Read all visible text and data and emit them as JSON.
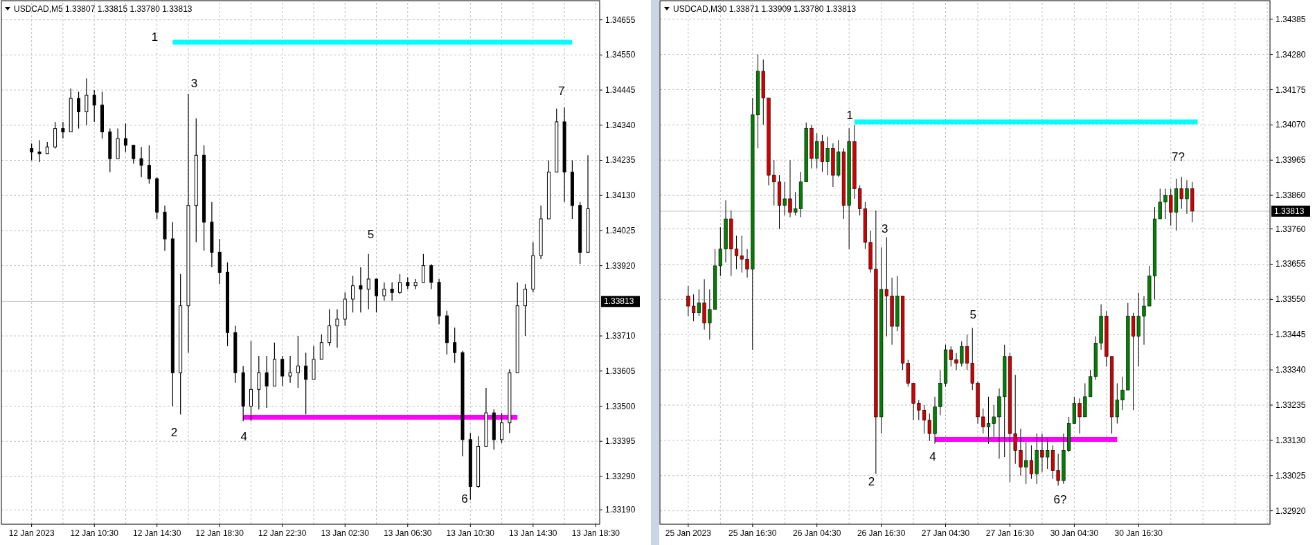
{
  "chart_data": [
    {
      "type": "candlestick",
      "title": "USDCAD,M5  1.33807 1.33815 1.33780 1.33813",
      "color": "#000000",
      "grid": true,
      "categories": [
        "12 Jan 2023",
        null,
        null,
        null,
        null,
        null,
        null,
        null,
        "12 Jan 10:30",
        null,
        null,
        null,
        null,
        null,
        null,
        null,
        "12 Jan 14:30",
        null,
        null,
        null,
        null,
        null,
        null,
        null,
        "12 Jan 18:30",
        null,
        null,
        null,
        null,
        null,
        null,
        null,
        "12 Jan 22:30",
        null,
        null,
        null,
        null,
        null,
        null,
        null,
        "13 Jan 02:30",
        null,
        null,
        null,
        null,
        null,
        null,
        null,
        "13 Jan 06:30",
        null,
        null,
        null,
        null,
        null,
        null,
        null,
        "13 Jan 10:30",
        null,
        null,
        null,
        null,
        null,
        null,
        null,
        "13 Jan 14:30",
        null,
        null,
        null,
        null,
        null,
        null,
        null,
        "13 Jan 18:30"
      ],
      "ohlc": [
        [
          1.3427,
          1.34285,
          1.34235,
          1.3426
        ],
        [
          1.3426,
          1.34295,
          1.3423,
          1.34255
        ],
        [
          1.34255,
          1.3429,
          1.34255,
          1.34275
        ],
        [
          1.34275,
          1.3435,
          1.3427,
          1.3433
        ],
        [
          1.3433,
          1.3435,
          1.343,
          1.3432
        ],
        [
          1.3432,
          1.3445,
          1.3432,
          1.3442
        ],
        [
          1.3442,
          1.3444,
          1.3433,
          1.3438
        ],
        [
          1.3438,
          1.3448,
          1.3434,
          1.3443
        ],
        [
          1.3443,
          1.34445,
          1.3435,
          1.344
        ],
        [
          1.344,
          1.3444,
          1.343,
          1.3432
        ],
        [
          1.3432,
          1.3433,
          1.342,
          1.3424
        ],
        [
          1.3424,
          1.3433,
          1.3424,
          1.343
        ],
        [
          1.343,
          1.34345,
          1.3426,
          1.3428
        ],
        [
          1.3428,
          1.3428,
          1.34225,
          1.3424
        ],
        [
          1.3424,
          1.34275,
          1.34185,
          1.3422
        ],
        [
          1.3422,
          1.3428,
          1.34165,
          1.3418
        ],
        [
          1.3418,
          1.34185,
          1.3406,
          1.3408
        ],
        [
          1.3408,
          1.341,
          1.33965,
          1.34
        ],
        [
          1.34,
          1.3405,
          1.335,
          1.336
        ],
        [
          1.336,
          1.33895,
          1.33475,
          1.338
        ],
        [
          1.338,
          1.34433,
          1.3366,
          1.341
        ],
        [
          1.341,
          1.3436,
          1.3399,
          1.3425
        ],
        [
          1.3425,
          1.3428,
          1.33965,
          1.3405
        ],
        [
          1.3405,
          1.3411,
          1.33915,
          1.3396
        ],
        [
          1.3396,
          1.34,
          1.33865,
          1.339
        ],
        [
          1.339,
          1.3393,
          1.3368,
          1.3372
        ],
        [
          1.3372,
          1.3374,
          1.3357,
          1.336
        ],
        [
          1.336,
          1.3362,
          1.33455,
          1.335
        ],
        [
          1.335,
          1.33695,
          1.33455,
          1.3355
        ],
        [
          1.3355,
          1.3365,
          1.3349,
          1.336
        ],
        [
          1.336,
          1.3365,
          1.33495,
          1.3356
        ],
        [
          1.3356,
          1.3369,
          1.3356,
          1.3364
        ],
        [
          1.3364,
          1.3365,
          1.3356,
          1.3359
        ],
        [
          1.3359,
          1.3365,
          1.3357,
          1.336
        ],
        [
          1.336,
          1.3371,
          1.33555,
          1.3362
        ],
        [
          1.3362,
          1.3366,
          1.33475,
          1.3358
        ],
        [
          1.3358,
          1.3368,
          1.3358,
          1.3364
        ],
        [
          1.3364,
          1.33715,
          1.3364,
          1.3369
        ],
        [
          1.3369,
          1.3379,
          1.3368,
          1.3374
        ],
        [
          1.3374,
          1.3379,
          1.33675,
          1.3376
        ],
        [
          1.3376,
          1.3384,
          1.3374,
          1.3382
        ],
        [
          1.3382,
          1.3389,
          1.3378,
          1.3386
        ],
        [
          1.3386,
          1.33915,
          1.3378,
          1.3385
        ],
        [
          1.3385,
          1.33955,
          1.3379,
          1.3388
        ],
        [
          1.3388,
          1.3388,
          1.3378,
          1.3383
        ],
        [
          1.3383,
          1.3387,
          1.33815,
          1.3385
        ],
        [
          1.3385,
          1.3387,
          1.33815,
          1.3384
        ],
        [
          1.3384,
          1.33895,
          1.33835,
          1.3387
        ],
        [
          1.3387,
          1.33885,
          1.3385,
          1.3386
        ],
        [
          1.3386,
          1.3388,
          1.3385,
          1.3387
        ],
        [
          1.3387,
          1.33955,
          1.3387,
          1.3392
        ],
        [
          1.3392,
          1.33925,
          1.3385,
          1.3387
        ],
        [
          1.3387,
          1.3388,
          1.33745,
          1.3377
        ],
        [
          1.3377,
          1.33785,
          1.33655,
          1.3369
        ],
        [
          1.3369,
          1.33735,
          1.3363,
          1.3366
        ],
        [
          1.3366,
          1.33665,
          1.3335,
          1.334
        ],
        [
          1.334,
          1.3342,
          1.3322,
          1.3326
        ],
        [
          1.3326,
          1.3341,
          1.33255,
          1.3338
        ],
        [
          1.3338,
          1.33555,
          1.3338,
          1.3348
        ],
        [
          1.3348,
          1.3349,
          1.3337,
          1.334
        ],
        [
          1.334,
          1.3348,
          1.3339,
          1.3345
        ],
        [
          1.3345,
          1.3361,
          1.3342,
          1.336
        ],
        [
          1.336,
          1.3387,
          1.336,
          1.338
        ],
        [
          1.338,
          1.33865,
          1.3371,
          1.3385
        ],
        [
          1.3385,
          1.3399,
          1.3384,
          1.3395
        ],
        [
          1.3395,
          1.341,
          1.3394,
          1.3406
        ],
        [
          1.3406,
          1.34235,
          1.3406,
          1.342
        ],
        [
          1.342,
          1.3439,
          1.342,
          1.3435
        ],
        [
          1.3435,
          1.34393,
          1.3411,
          1.342
        ],
        [
          1.342,
          1.34235,
          1.3406,
          1.341
        ],
        [
          1.341,
          1.3411,
          1.33925,
          1.3396
        ],
        [
          1.3396,
          1.3425,
          1.3396,
          1.3409
        ],
        null
      ],
      "series": [
        {
          "type": "line",
          "color": "#00ffff",
          "values": [
            null,
            null,
            null,
            null,
            null,
            null,
            null,
            null,
            null,
            null,
            null,
            null,
            null,
            null,
            null,
            null,
            null,
            null,
            1.34588,
            1.34588,
            1.34588,
            1.34588,
            1.34588,
            1.34588,
            1.34588,
            1.34588,
            1.34588,
            1.34588,
            1.34588,
            1.34588,
            1.34588,
            1.34588,
            1.34588,
            1.34588,
            1.34588,
            1.34588,
            1.34588,
            1.34588,
            1.34588,
            1.34588,
            1.34588,
            1.34588,
            1.34588,
            1.34588,
            1.34588,
            1.34588,
            1.34588,
            1.34588,
            1.34588,
            1.34588,
            1.34588,
            1.34588,
            1.34588,
            1.34588,
            1.34588,
            1.34588,
            1.34588,
            1.34588,
            1.34588,
            1.34588,
            1.34588,
            1.34588,
            1.34588,
            1.34588,
            1.34588,
            1.34588,
            1.34588,
            1.34588,
            1.34588,
            1.34588,
            null,
            null,
            null
          ]
        },
        {
          "type": "line",
          "color": "#ff00ff",
          "values": [
            null,
            null,
            null,
            null,
            null,
            null,
            null,
            null,
            null,
            null,
            null,
            null,
            null,
            null,
            null,
            null,
            null,
            null,
            null,
            null,
            null,
            null,
            null,
            null,
            null,
            null,
            null,
            1.33467,
            1.33467,
            1.33467,
            1.33467,
            1.33467,
            1.33467,
            1.33467,
            1.33467,
            1.33467,
            1.33467,
            1.33467,
            1.33467,
            1.33467,
            1.33467,
            1.33467,
            1.33467,
            1.33467,
            1.33467,
            1.33467,
            1.33467,
            1.33467,
            1.33467,
            1.33467,
            1.33467,
            1.33467,
            1.33467,
            1.33467,
            1.33467,
            1.33467,
            1.33467,
            1.33467,
            1.33467,
            1.33467,
            1.33467,
            1.33467,
            1.33467,
            null,
            null,
            null,
            null,
            null,
            null,
            null,
            null,
            null,
            null
          ]
        }
      ],
      "ref_lines": [
        {
          "axis": "y",
          "value": 1.33813,
          "label": "1.33813",
          "color": "#c0c0c0"
        }
      ],
      "annotations": [
        "1",
        "2",
        "3",
        "4",
        "5",
        "6",
        "7"
      ],
      "ylim": [
        1.33147,
        1.34706
      ],
      "yticks": [
        {
          "value": 1.3319,
          "label": "1.33190"
        },
        {
          "value": 1.3329,
          "label": "1.33290"
        },
        {
          "value": 1.33395,
          "label": "1.33395"
        },
        {
          "value": 1.335,
          "label": "1.33500"
        },
        {
          "value": 1.33605,
          "label": "1.33605"
        },
        {
          "value": 1.3371,
          "label": "1.33710"
        },
        {
          "value": 1.3392,
          "label": "1.33920"
        },
        {
          "value": 1.34025,
          "label": "1.34025"
        },
        {
          "value": 1.3413,
          "label": "1.34130"
        },
        {
          "value": 1.34235,
          "label": "1.34235"
        },
        {
          "value": 1.3434,
          "label": "1.34340"
        },
        {
          "value": 1.34445,
          "label": "1.34445"
        },
        {
          "value": 1.3455,
          "label": "1.34550"
        },
        {
          "value": 1.34655,
          "label": "1.34655"
        }
      ]
    },
    {
      "type": "candlestick",
      "title": "USDCAD,M30  1.33871 1.33909 1.33780 1.33813",
      "grid": true,
      "categories": [
        "25 Jan 2023",
        null,
        null,
        null,
        null,
        null,
        null,
        null,
        null,
        null,
        null,
        null,
        "25 Jan 16:30",
        null,
        null,
        null,
        null,
        null,
        null,
        null,
        null,
        null,
        null,
        null,
        "26 Jan 04:30",
        null,
        null,
        null,
        null,
        null,
        null,
        null,
        null,
        null,
        null,
        null,
        "26 Jan 16:30",
        null,
        null,
        null,
        null,
        null,
        null,
        null,
        null,
        null,
        null,
        null,
        "27 Jan 04:30",
        null,
        null,
        null,
        null,
        null,
        null,
        null,
        null,
        null,
        null,
        null,
        "27 Jan 16:30",
        null,
        null,
        null,
        null,
        null,
        null,
        null,
        null,
        null,
        null,
        null,
        "30 Jan 04:30",
        null,
        null,
        null,
        null,
        null,
        null,
        null,
        null,
        null,
        null,
        null,
        "30 Jan 16:30",
        null,
        null,
        null,
        null,
        null,
        null,
        null,
        null,
        null,
        null,
        null,
        null,
        null,
        null,
        null,
        null,
        null,
        null,
        null,
        null,
        null,
        null,
        null,
        null
      ],
      "ohlc": [
        [
          1.3356,
          1.3359,
          1.335,
          1.3353
        ],
        [
          1.3353,
          1.33565,
          1.33485,
          1.3351
        ],
        [
          1.3351,
          1.3358,
          1.335,
          1.3354
        ],
        [
          1.3354,
          1.3361,
          1.3346,
          1.3348
        ],
        [
          1.3348,
          1.3358,
          1.3343,
          1.3352
        ],
        [
          1.3352,
          1.337,
          1.3352,
          1.3365
        ],
        [
          1.3365,
          1.33765,
          1.3362,
          1.337
        ],
        [
          1.337,
          1.33845,
          1.3366,
          1.3379
        ],
        [
          1.3379,
          1.33815,
          1.3362,
          1.337
        ],
        [
          1.337,
          1.3374,
          1.3364,
          1.3368
        ],
        [
          1.3368,
          1.3374,
          1.3363,
          1.3367
        ],
        [
          1.3367,
          1.337,
          1.33615,
          1.3364
        ],
        [
          1.3364,
          1.3415,
          1.334,
          1.341
        ],
        [
          1.341,
          1.3428,
          1.34,
          1.3423
        ],
        [
          1.3423,
          1.34265,
          1.3407,
          1.3415
        ],
        [
          1.3415,
          1.3415,
          1.3389,
          1.3392
        ],
        [
          1.3392,
          1.33965,
          1.3383,
          1.339
        ],
        [
          1.339,
          1.3392,
          1.3376,
          1.3383
        ],
        [
          1.3383,
          1.339,
          1.338,
          1.3385
        ],
        [
          1.3385,
          1.33965,
          1.33795,
          1.3381
        ],
        [
          1.3381,
          1.3387,
          1.338,
          1.3382
        ],
        [
          1.3382,
          1.3393,
          1.33795,
          1.339
        ],
        [
          1.339,
          1.34077,
          1.339,
          1.3406
        ],
        [
          1.3406,
          1.3407,
          1.3394,
          1.3397
        ],
        [
          1.3397,
          1.34045,
          1.3394,
          1.3402
        ],
        [
          1.3402,
          1.3404,
          1.3393,
          1.3396
        ],
        [
          1.3396,
          1.34035,
          1.3392,
          1.34
        ],
        [
          1.34,
          1.34015,
          1.33885,
          1.3392
        ],
        [
          1.3392,
          1.34025,
          1.33915,
          1.3399
        ],
        [
          1.3399,
          1.34,
          1.3379,
          1.3383
        ],
        [
          1.3383,
          1.3406,
          1.337,
          1.3402
        ],
        [
          1.3402,
          1.3407,
          1.3385,
          1.3388
        ],
        [
          1.3388,
          1.3389,
          1.338,
          1.3382
        ],
        [
          1.3382,
          1.3384,
          1.337,
          1.3372
        ],
        [
          1.3372,
          1.33755,
          1.3363,
          1.3364
        ],
        [
          1.3364,
          1.33815,
          1.3303,
          1.332
        ],
        [
          1.332,
          1.33705,
          1.3315,
          1.3358
        ],
        [
          1.3358,
          1.33735,
          1.3344,
          1.3356
        ],
        [
          1.3356,
          1.33615,
          1.33415,
          1.3347
        ],
        [
          1.3347,
          1.3362,
          1.33455,
          1.3356
        ],
        [
          1.3356,
          1.3356,
          1.3334,
          1.3336
        ],
        [
          1.3336,
          1.3337,
          1.3329,
          1.333
        ],
        [
          1.333,
          1.333,
          1.3319,
          1.3324
        ],
        [
          1.3324,
          1.3325,
          1.3319,
          1.3322
        ],
        [
          1.3322,
          1.33235,
          1.3315,
          1.3319
        ],
        [
          1.3319,
          1.3321,
          1.33128,
          1.3315
        ],
        [
          1.3315,
          1.3326,
          1.3312,
          1.3323
        ],
        [
          1.3323,
          1.3334,
          1.33205,
          1.333
        ],
        [
          1.333,
          1.33415,
          1.3329,
          1.334
        ],
        [
          1.334,
          1.3341,
          1.3335,
          1.3337
        ],
        [
          1.3337,
          1.3339,
          1.3334,
          1.3336
        ],
        [
          1.3336,
          1.33425,
          1.3335,
          1.3341
        ],
        [
          1.3341,
          1.33445,
          1.3334,
          1.3336
        ],
        [
          1.3336,
          1.33465,
          1.3328,
          1.333
        ],
        [
          1.333,
          1.33305,
          1.3318,
          1.332
        ],
        [
          1.332,
          1.33225,
          1.3315,
          1.3317
        ],
        [
          1.3317,
          1.3326,
          1.3312,
          1.3318
        ],
        [
          1.3318,
          1.33235,
          1.3314,
          1.332
        ],
        [
          1.332,
          1.33285,
          1.33075,
          1.3326
        ],
        [
          1.3326,
          1.33415,
          1.3308,
          1.3338
        ],
        [
          1.3338,
          1.3339,
          1.33005,
          1.3315
        ],
        [
          1.3315,
          1.33325,
          1.3306,
          1.331
        ],
        [
          1.331,
          1.33165,
          1.33025,
          1.3305
        ],
        [
          1.3305,
          1.33125,
          1.33,
          1.3307
        ],
        [
          1.3307,
          1.33115,
          1.33015,
          1.3303
        ],
        [
          1.3303,
          1.3315,
          1.33,
          1.331
        ],
        [
          1.331,
          1.3315,
          1.33035,
          1.3308
        ],
        [
          1.3308,
          1.33135,
          1.33045,
          1.331
        ],
        [
          1.331,
          1.33115,
          1.33015,
          1.3304
        ],
        [
          1.3304,
          1.3309,
          1.32995,
          1.3301
        ],
        [
          1.3301,
          1.3315,
          1.33,
          1.331
        ],
        [
          1.331,
          1.332,
          1.33095,
          1.3318
        ],
        [
          1.3318,
          1.3326,
          1.3318,
          1.3324
        ],
        [
          1.3324,
          1.33255,
          1.3315,
          1.332
        ],
        [
          1.332,
          1.333,
          1.332,
          1.3326
        ],
        [
          1.3326,
          1.3334,
          1.3326,
          1.3332
        ],
        [
          1.3332,
          1.3344,
          1.3331,
          1.3342
        ],
        [
          1.3342,
          1.33535,
          1.334,
          1.335
        ],
        [
          1.335,
          1.33515,
          1.3335,
          1.3338
        ],
        [
          1.3338,
          1.3338,
          1.3315,
          1.332
        ],
        [
          1.332,
          1.333,
          1.3318,
          1.3325
        ],
        [
          1.3325,
          1.3332,
          1.3322,
          1.3328
        ],
        [
          1.3328,
          1.3354,
          1.3328,
          1.335
        ],
        [
          1.335,
          1.3351,
          1.3322,
          1.3344
        ],
        [
          1.3344,
          1.3357,
          1.3335,
          1.335
        ],
        [
          1.335,
          1.3356,
          1.33415,
          1.3353
        ],
        [
          1.3353,
          1.3365,
          1.3353,
          1.3362
        ],
        [
          1.3362,
          1.33825,
          1.3355,
          1.3379
        ],
        [
          1.3379,
          1.3388,
          1.3379,
          1.3384
        ],
        [
          1.3384,
          1.3388,
          1.3379,
          1.3386
        ],
        [
          1.3386,
          1.3388,
          1.3377,
          1.3381
        ],
        [
          1.3381,
          1.3391,
          1.33755,
          1.3388
        ],
        [
          1.3388,
          1.33915,
          1.3382,
          1.3385
        ],
        [
          1.3385,
          1.33905,
          1.33805,
          1.3388
        ],
        [
          1.3388,
          1.339,
          1.3378,
          1.33813
        ],
        null,
        null,
        null,
        null,
        null,
        null,
        null,
        null,
        null,
        null,
        null,
        null,
        null,
        null
      ],
      "colors": [
        "#d00000",
        "#d00000",
        "#008000",
        "#d00000",
        "#008000",
        "#008000",
        "#008000",
        "#008000",
        "#d00000",
        "#d00000",
        "#d00000",
        "#d00000",
        "#008000",
        "#008000",
        "#d00000",
        "#d00000",
        "#d00000",
        "#d00000",
        "#008000",
        "#d00000",
        "#008000",
        "#008000",
        "#008000",
        "#d00000",
        "#008000",
        "#d00000",
        "#008000",
        "#d00000",
        "#008000",
        "#d00000",
        "#008000",
        "#d00000",
        "#d00000",
        "#d00000",
        "#d00000",
        "#d00000",
        "#008000",
        "#d00000",
        "#d00000",
        "#008000",
        "#d00000",
        "#d00000",
        "#d00000",
        "#d00000",
        "#d00000",
        "#d00000",
        "#008000",
        "#008000",
        "#008000",
        "#d00000",
        "#d00000",
        "#008000",
        "#d00000",
        "#d00000",
        "#d00000",
        "#d00000",
        "#008000",
        "#008000",
        "#008000",
        "#008000",
        "#d00000",
        "#d00000",
        "#d00000",
        "#008000",
        "#d00000",
        "#008000",
        "#d00000",
        "#008000",
        "#d00000",
        "#d00000",
        "#008000",
        "#008000",
        "#008000",
        "#d00000",
        "#008000",
        "#008000",
        "#008000",
        "#008000",
        "#d00000",
        "#d00000",
        "#008000",
        "#008000",
        "#008000",
        "#d00000",
        "#008000",
        "#008000",
        "#008000",
        "#008000",
        "#008000",
        "#008000",
        "#d00000",
        "#008000",
        "#d00000",
        "#008000",
        "#d00000",
        null,
        null,
        null,
        null,
        null,
        null,
        null,
        null,
        null,
        null,
        null,
        null,
        null,
        null
      ],
      "series": [
        {
          "type": "line",
          "color": "#00ffff",
          "values": [
            null,
            null,
            null,
            null,
            null,
            null,
            null,
            null,
            null,
            null,
            null,
            null,
            null,
            null,
            null,
            null,
            null,
            null,
            null,
            null,
            null,
            null,
            null,
            null,
            null,
            null,
            null,
            null,
            null,
            null,
            null,
            1.34079,
            1.34079,
            1.34079,
            1.34079,
            1.34079,
            1.34079,
            1.34079,
            1.34079,
            1.34079,
            1.34079,
            1.34079,
            1.34079,
            1.34079,
            1.34079,
            1.34079,
            1.34079,
            1.34079,
            1.34079,
            1.34079,
            1.34079,
            1.34079,
            1.34079,
            1.34079,
            1.34079,
            1.34079,
            1.34079,
            1.34079,
            1.34079,
            1.34079,
            1.34079,
            1.34079,
            1.34079,
            1.34079,
            1.34079,
            1.34079,
            1.34079,
            1.34079,
            1.34079,
            1.34079,
            1.34079,
            1.34079,
            1.34079,
            1.34079,
            1.34079,
            1.34079,
            1.34079,
            1.34079,
            1.34079,
            1.34079,
            1.34079,
            1.34079,
            1.34079,
            1.34079,
            1.34079,
            1.34079,
            1.34079,
            1.34079,
            1.34079,
            1.34079,
            1.34079,
            1.34079,
            1.34079,
            1.34079,
            1.34079,
            1.34079,
            null,
            null,
            null,
            null,
            null,
            null,
            null,
            null,
            null,
            null,
            null,
            null,
            null
          ]
        },
        {
          "type": "line",
          "color": "#ff00ff",
          "values": [
            null,
            null,
            null,
            null,
            null,
            null,
            null,
            null,
            null,
            null,
            null,
            null,
            null,
            null,
            null,
            null,
            null,
            null,
            null,
            null,
            null,
            null,
            null,
            null,
            null,
            null,
            null,
            null,
            null,
            null,
            null,
            null,
            null,
            null,
            null,
            null,
            null,
            null,
            null,
            null,
            null,
            null,
            null,
            null,
            null,
            null,
            1.33133,
            1.33133,
            1.33133,
            1.33133,
            1.33133,
            1.33133,
            1.33133,
            1.33133,
            1.33133,
            1.33133,
            1.33133,
            1.33133,
            1.33133,
            1.33133,
            1.33133,
            1.33133,
            1.33133,
            1.33133,
            1.33133,
            1.33133,
            1.33133,
            1.33133,
            1.33133,
            1.33133,
            1.33133,
            1.33133,
            1.33133,
            1.33133,
            1.33133,
            1.33133,
            1.33133,
            1.33133,
            1.33133,
            1.33133,
            1.33133,
            null,
            null,
            null,
            null,
            null,
            null,
            null,
            null,
            null,
            null,
            null,
            null,
            null,
            null,
            null,
            null,
            null,
            null,
            null,
            null,
            null,
            null,
            null,
            null,
            null,
            null,
            null,
            null
          ]
        }
      ],
      "ref_lines": [
        {
          "axis": "y",
          "value": 1.33813,
          "label": "1.33813",
          "color": "#c0c0c0"
        }
      ],
      "annotations": [
        "1",
        "2",
        "3",
        "4",
        "5",
        "6?",
        "7?"
      ],
      "ylim": [
        1.3288,
        1.34434
      ],
      "yticks": [
        {
          "value": 1.3292,
          "label": "1.32920"
        },
        {
          "value": 1.33025,
          "label": "1.33025"
        },
        {
          "value": 1.3313,
          "label": "1.33130"
        },
        {
          "value": 1.33235,
          "label": "1.33235"
        },
        {
          "value": 1.3334,
          "label": "1.33340"
        },
        {
          "value": 1.33445,
          "label": "1.33445"
        },
        {
          "value": 1.3355,
          "label": "1.33550"
        },
        {
          "value": 1.33655,
          "label": "1.33655"
        },
        {
          "value": 1.3376,
          "label": "1.33760"
        },
        {
          "value": 1.3386,
          "label": "1.33860"
        },
        {
          "value": 1.33965,
          "label": "1.33965"
        },
        {
          "value": 1.3407,
          "label": "1.34070"
        },
        {
          "value": 1.34175,
          "label": "1.34175"
        },
        {
          "value": 1.3428,
          "label": "1.34280"
        },
        {
          "value": 1.34385,
          "label": "1.34385"
        }
      ]
    }
  ]
}
